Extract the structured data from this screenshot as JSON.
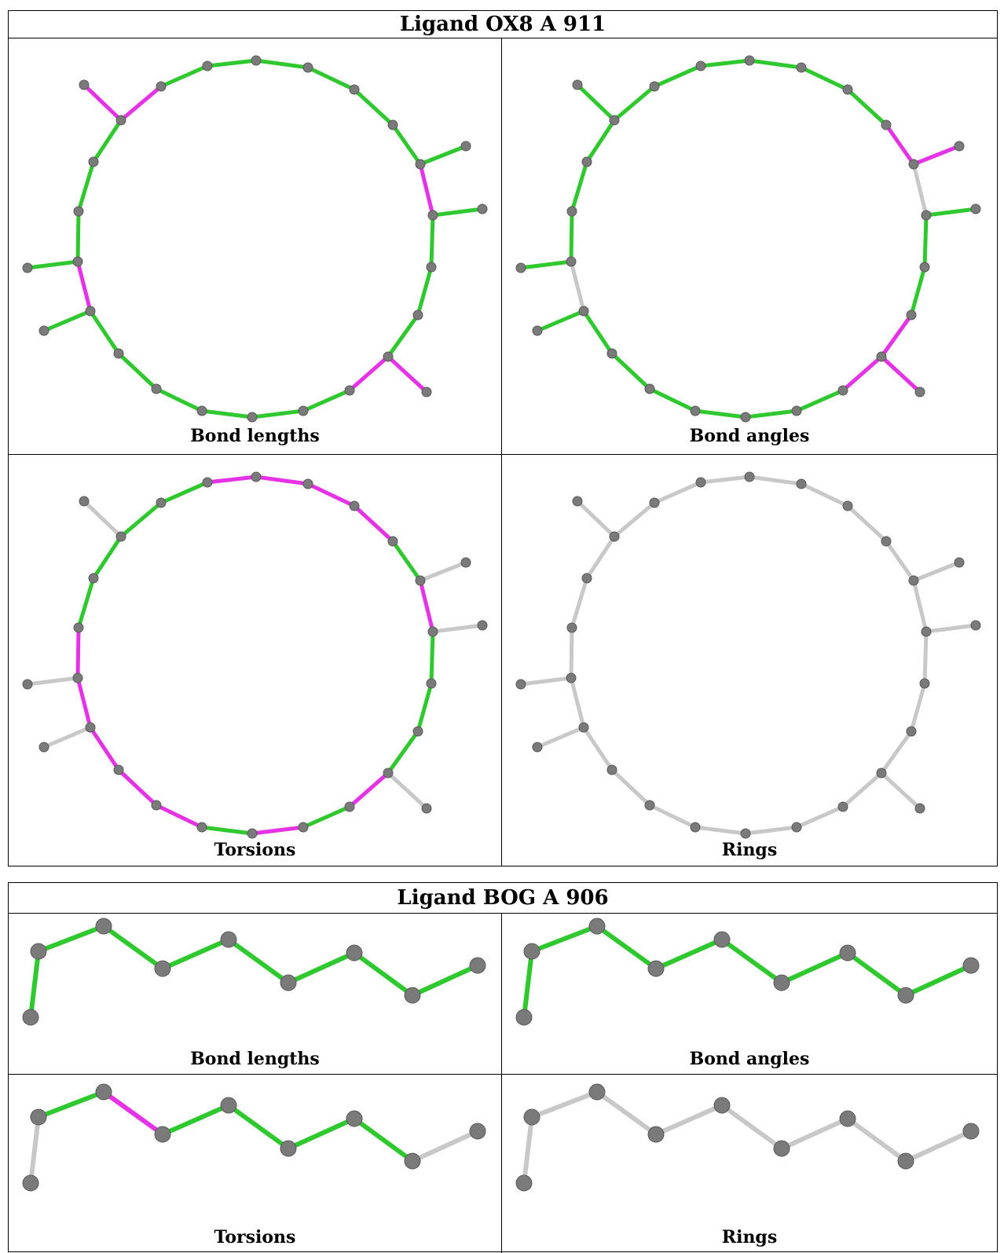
{
  "colors": {
    "pass": "#2fc82f",
    "fail": "#e632e6",
    "none": "#c8c8c8",
    "atom": "#7a7a7a"
  },
  "panel_labels": [
    "Bond lengths",
    "Bond angles",
    "Torsions",
    "Rings"
  ],
  "tables": [
    {
      "title": "Ligand OX8 A 911"
    },
    {
      "title": "Ligand BOG A 906"
    }
  ]
}
